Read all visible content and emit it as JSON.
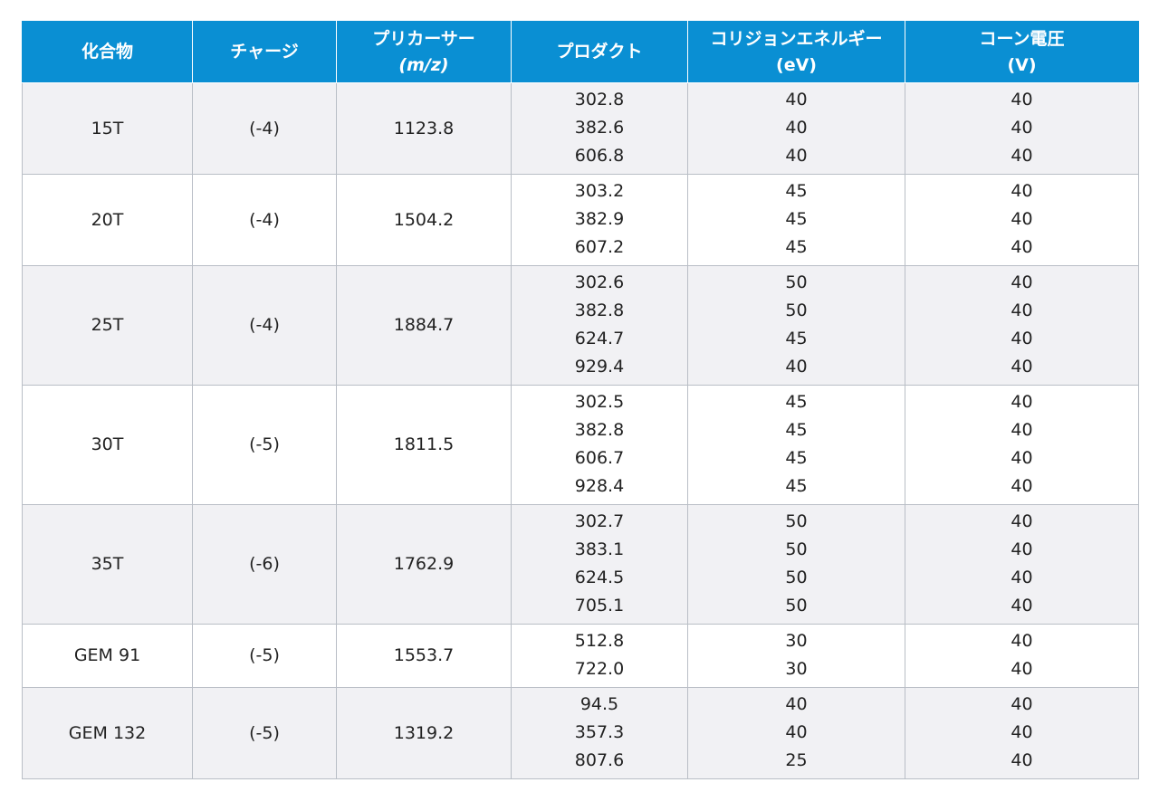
{
  "table": {
    "headers": {
      "compound": "化合物",
      "charge": "チャージ",
      "precursor": "プリカーサー",
      "precursor_unit": "(m/z)",
      "product": "プロダクト",
      "collision_energy": "コリジョンエネルギー",
      "collision_energy_unit": "(eV)",
      "cone_voltage": "コーン電圧",
      "cone_voltage_unit": "(V)"
    },
    "rows": [
      {
        "compound": "15T",
        "charge": "(-4)",
        "precursor": "1123.8",
        "products": [
          "302.8",
          "382.6",
          "606.8"
        ],
        "collision_energies": [
          "40",
          "40",
          "40"
        ],
        "cone_voltages": [
          "40",
          "40",
          "40"
        ]
      },
      {
        "compound": "20T",
        "charge": "(-4)",
        "precursor": "1504.2",
        "products": [
          "303.2",
          "382.9",
          "607.2"
        ],
        "collision_energies": [
          "45",
          "45",
          "45"
        ],
        "cone_voltages": [
          "40",
          "40",
          "40"
        ]
      },
      {
        "compound": "25T",
        "charge": "(-4)",
        "precursor": "1884.7",
        "products": [
          "302.6",
          "382.8",
          "624.7",
          "929.4"
        ],
        "collision_energies": [
          "50",
          "50",
          "45",
          "40"
        ],
        "cone_voltages": [
          "40",
          "40",
          "40",
          "40"
        ]
      },
      {
        "compound": "30T",
        "charge": "(-5)",
        "precursor": "1811.5",
        "products": [
          "302.5",
          "382.8",
          "606.7",
          "928.4"
        ],
        "collision_energies": [
          "45",
          "45",
          "45",
          "45"
        ],
        "cone_voltages": [
          "40",
          "40",
          "40",
          "40"
        ]
      },
      {
        "compound": "35T",
        "charge": "(-6)",
        "precursor": "1762.9",
        "products": [
          "302.7",
          "383.1",
          "624.5",
          "705.1"
        ],
        "collision_energies": [
          "50",
          "50",
          "50",
          "50"
        ],
        "cone_voltages": [
          "40",
          "40",
          "40",
          "40"
        ]
      },
      {
        "compound": "GEM 91",
        "charge": "(-5)",
        "precursor": "1553.7",
        "products": [
          "512.8",
          "722.0"
        ],
        "collision_energies": [
          "30",
          "30"
        ],
        "cone_voltages": [
          "40",
          "40"
        ]
      },
      {
        "compound": "GEM 132",
        "charge": "(-5)",
        "precursor": "1319.2",
        "products": [
          "94.5",
          "357.3",
          "807.6"
        ],
        "collision_energies": [
          "40",
          "40",
          "25"
        ],
        "cone_voltages": [
          "40",
          "40",
          "40"
        ]
      }
    ]
  },
  "colors": {
    "header_background": "#0a8fd3",
    "header_text": "#ffffff",
    "row_shaded": "#f1f1f4",
    "row_plain": "#ffffff",
    "grid_line": "#b9bec6"
  }
}
